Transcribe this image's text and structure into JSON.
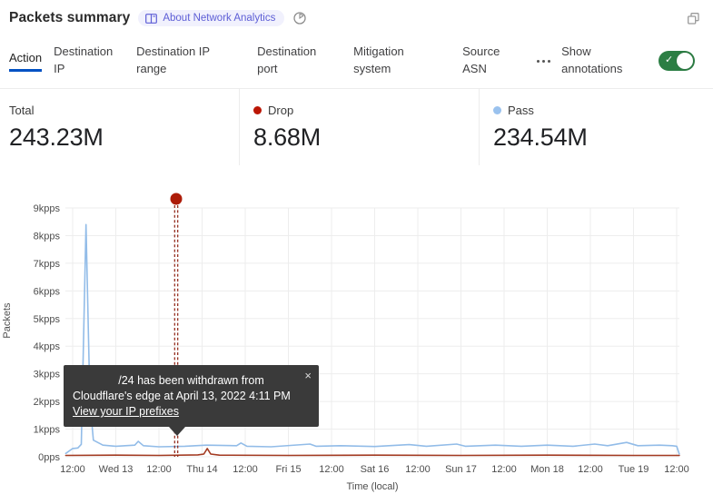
{
  "header": {
    "title": "Packets summary",
    "badge_label": "About Network Analytics",
    "icons": {
      "badge": "book-icon",
      "time": "time-range-icon",
      "popout": "pop-out-icon"
    }
  },
  "tabs": {
    "items": [
      {
        "label": "Action",
        "active": true
      },
      {
        "label": "Destination IP",
        "active": false
      },
      {
        "label": "Destination IP range",
        "active": false
      },
      {
        "label": "Destination port",
        "active": false
      },
      {
        "label": "Mitigation system",
        "active": false
      },
      {
        "label": "Source ASN",
        "active": false
      }
    ],
    "more_icon": "ellipsis-icon",
    "show_annotations_label": "Show annotations",
    "toggle_on": true,
    "toggle_check": "✓",
    "toggle_color": "#2c7e44"
  },
  "stats": [
    {
      "label": "Total",
      "value": "243.23M",
      "dot_color": null
    },
    {
      "label": "Drop",
      "value": "8.68M",
      "dot_color": "#bb1605"
    },
    {
      "label": "Pass",
      "value": "234.54M",
      "dot_color": "#9ac2ee"
    }
  ],
  "annotation": {
    "line1": "/24 has been withdrawn from",
    "line2": "Cloudflare's edge at April 13, 2022 4:11 PM",
    "link": "View your IP prefixes",
    "close": "×",
    "time_shown": "April 13, 2022 4:11 PM"
  },
  "chart_data": {
    "type": "line",
    "title": "Packets summary",
    "xlabel": "Time (local)",
    "ylabel": "Packets",
    "unit": "kpps",
    "ylim": [
      0,
      9
    ],
    "grid": true,
    "x_ticks": [
      "12:00",
      "Wed 13",
      "12:00",
      "Thu 14",
      "12:00",
      "Fri 15",
      "12:00",
      "Sat 16",
      "12:00",
      "Sun 17",
      "12:00",
      "Mon 18",
      "12:00",
      "Tue 19",
      "12:00"
    ],
    "y_ticks": [
      "9kpps",
      "8kpps",
      "7kpps",
      "6kpps",
      "5kpps",
      "4kpps",
      "3kpps",
      "2kpps",
      "1kpps",
      "0pps"
    ],
    "x_range_days": [
      -0.08,
      7.03
    ],
    "series": [
      {
        "name": "Pass",
        "color": "#92bce8",
        "points": [
          [
            -0.08,
            0.12
          ],
          [
            0.0,
            0.3
          ],
          [
            0.06,
            0.32
          ],
          [
            0.1,
            0.45
          ],
          [
            0.155,
            8.4
          ],
          [
            0.2,
            2.0
          ],
          [
            0.24,
            0.6
          ],
          [
            0.35,
            0.42
          ],
          [
            0.5,
            0.38
          ],
          [
            0.72,
            0.42
          ],
          [
            0.76,
            0.56
          ],
          [
            0.82,
            0.4
          ],
          [
            1.0,
            0.36
          ],
          [
            1.3,
            0.38
          ],
          [
            1.55,
            0.42
          ],
          [
            1.9,
            0.4
          ],
          [
            1.95,
            0.5
          ],
          [
            2.02,
            0.38
          ],
          [
            2.3,
            0.36
          ],
          [
            2.75,
            0.46
          ],
          [
            2.82,
            0.38
          ],
          [
            3.1,
            0.4
          ],
          [
            3.5,
            0.37
          ],
          [
            3.9,
            0.44
          ],
          [
            4.1,
            0.38
          ],
          [
            4.45,
            0.46
          ],
          [
            4.55,
            0.38
          ],
          [
            4.9,
            0.42
          ],
          [
            5.2,
            0.38
          ],
          [
            5.5,
            0.42
          ],
          [
            5.8,
            0.38
          ],
          [
            6.05,
            0.46
          ],
          [
            6.2,
            0.4
          ],
          [
            6.42,
            0.52
          ],
          [
            6.55,
            0.4
          ],
          [
            6.8,
            0.42
          ],
          [
            6.95,
            0.4
          ],
          [
            7.0,
            0.38
          ],
          [
            7.03,
            0.1
          ]
        ]
      },
      {
        "name": "Drop",
        "color": "#a33a21",
        "points": [
          [
            -0.08,
            0.05
          ],
          [
            0.5,
            0.06
          ],
          [
            1.0,
            0.05
          ],
          [
            1.45,
            0.07
          ],
          [
            1.52,
            0.1
          ],
          [
            1.56,
            0.3
          ],
          [
            1.6,
            0.1
          ],
          [
            1.7,
            0.06
          ],
          [
            2.5,
            0.05
          ],
          [
            3.5,
            0.06
          ],
          [
            4.5,
            0.05
          ],
          [
            5.5,
            0.06
          ],
          [
            6.5,
            0.05
          ],
          [
            7.03,
            0.05
          ]
        ]
      }
    ],
    "annotation_marker": {
      "day": 1.2,
      "dot_color": "#ad1c09",
      "line_color": "#8c1f10"
    },
    "legend_position": "top-stats-row"
  }
}
